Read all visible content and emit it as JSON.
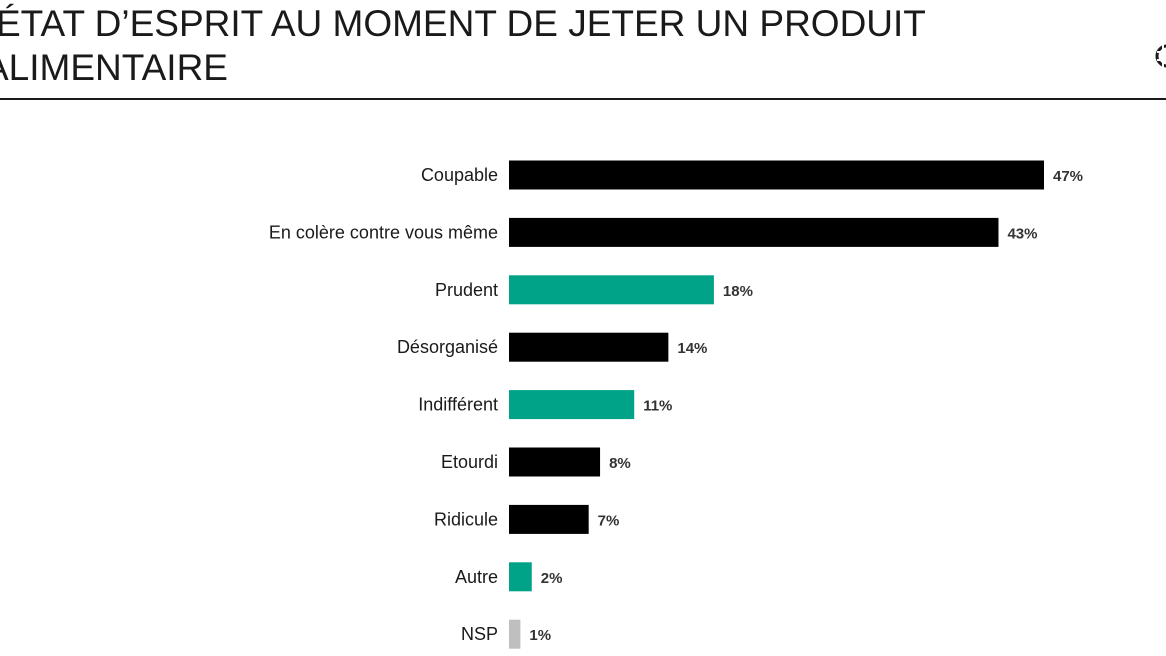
{
  "header": {
    "title_line1": "ÉTAT D’ESPRIT AU MOMENT DE JETER UN PRODUIT",
    "title_line2": "ALIMENTAIRE"
  },
  "chart_data": {
    "type": "bar",
    "orientation": "horizontal",
    "title": "ÉTAT D’ESPRIT AU MOMENT DE JETER UN PRODUIT ALIMENTAIRE",
    "xlabel": "",
    "ylabel": "",
    "unit": "%",
    "categories": [
      "Coupable",
      "En colère contre vous même",
      "Prudent",
      "Désorganisé",
      "Indifférent",
      "Etourdi",
      "Ridicule",
      "Autre",
      "NSP"
    ],
    "values": [
      47,
      43,
      18,
      14,
      11,
      8,
      7,
      2,
      1
    ],
    "value_labels": [
      "47%",
      "43%",
      "18%",
      "14%",
      "11%",
      "8%",
      "7%",
      "2%",
      "1%"
    ],
    "bar_colors": [
      "#000000",
      "#000000",
      "#00a388",
      "#000000",
      "#00a388",
      "#000000",
      "#000000",
      "#00a388",
      "#bfbfbf"
    ],
    "grid": false,
    "legend": "none"
  }
}
